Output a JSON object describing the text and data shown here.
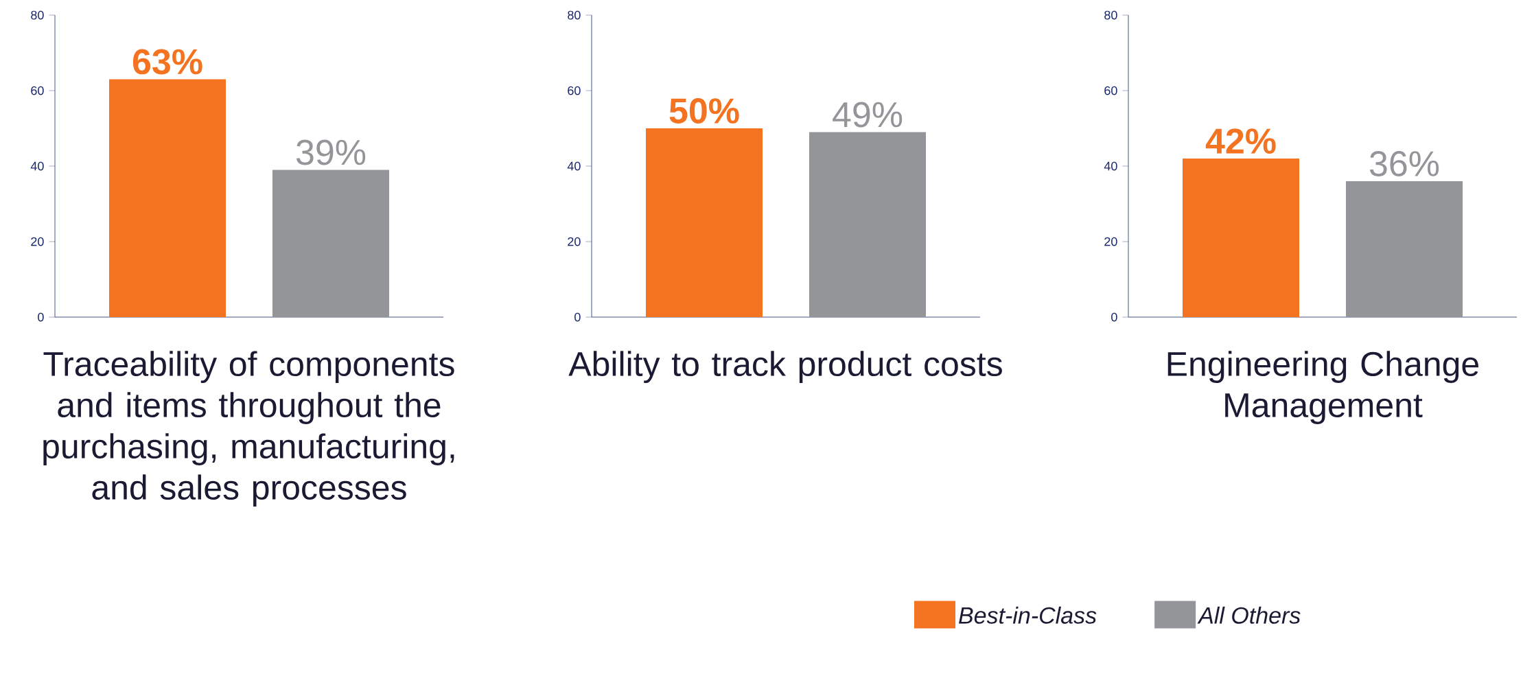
{
  "chart_data": [
    {
      "type": "bar",
      "categories": [
        null
      ],
      "xlabel": "Traceability of components and items throughout the purchasing, manufacturing, and sales processes",
      "ylim": [
        0,
        80
      ],
      "yticks": [
        0,
        20,
        40,
        60,
        80
      ],
      "legend": false,
      "series": [
        {
          "color": "#f37321",
          "values": [
            63
          ],
          "value_labels": [
            "63%"
          ]
        },
        {
          "color": "#939598",
          "values": [
            39
          ],
          "value_labels": [
            "39%"
          ]
        }
      ]
    },
    {
      "type": "bar",
      "categories": [
        null
      ],
      "xlabel": "Ability to track product costs",
      "ylim": [
        0,
        80
      ],
      "yticks": [
        0,
        20,
        40,
        60,
        80
      ],
      "legend": false,
      "series": [
        {
          "color": "#f37321",
          "values": [
            50
          ],
          "value_labels": [
            "50%"
          ]
        },
        {
          "color": "#939598",
          "values": [
            49
          ],
          "value_labels": [
            "49%"
          ]
        }
      ]
    },
    {
      "type": "bar",
      "categories": [
        null
      ],
      "xlabel": "Engineering Change Management",
      "ylim": [
        0,
        80
      ],
      "yticks": [
        0,
        20,
        40,
        60,
        80
      ],
      "legend": "bottom",
      "series": [
        {
          "name": "Best-in-Class",
          "color": "#f37321",
          "values": [
            42
          ],
          "value_labels": [
            "42%"
          ]
        },
        {
          "name": "All Others",
          "color": "#939598",
          "values": [
            36
          ],
          "value_labels": [
            "36%"
          ]
        }
      ]
    }
  ]
}
